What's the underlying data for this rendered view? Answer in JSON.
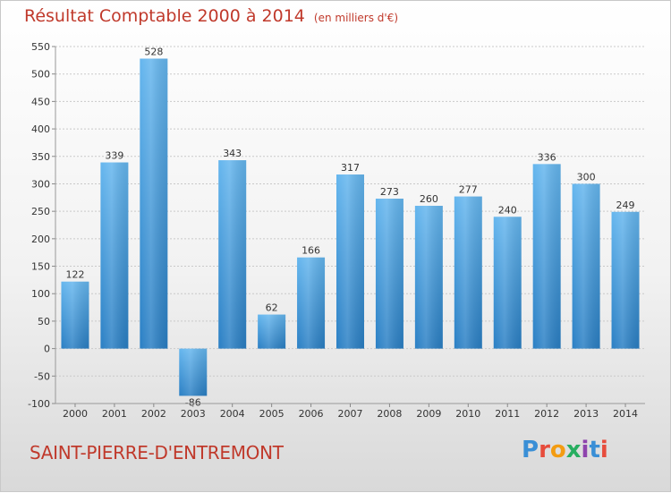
{
  "header": {
    "title": "Résultat Comptable 2000 à 2014",
    "subtitle": "(en milliers d'€)"
  },
  "footer": {
    "commune": "SAINT-PIERRE-D'ENTREMONT",
    "logo_letters": [
      "P",
      "r",
      "o",
      "x",
      "i",
      "t",
      "i"
    ]
  },
  "colors": {
    "bar": "#3d9be0",
    "bar_light": "#65b6ee",
    "bar_dark": "#2a7fc4",
    "title": "#c0392b"
  },
  "chart_data": {
    "type": "bar",
    "title": "Résultat Comptable 2000 à 2014",
    "subtitle": "(en milliers d'€)",
    "categories": [
      "2000",
      "2001",
      "2002",
      "2003",
      "2004",
      "2005",
      "2006",
      "2007",
      "2008",
      "2009",
      "2010",
      "2011",
      "2012",
      "2013",
      "2014"
    ],
    "values": [
      122,
      339,
      528,
      -86,
      343,
      62,
      166,
      317,
      273,
      260,
      277,
      240,
      336,
      300,
      249
    ],
    "ylim": [
      -100,
      550
    ],
    "yticks": [
      -100,
      -50,
      0,
      50,
      100,
      150,
      200,
      250,
      300,
      350,
      400,
      450,
      500,
      550
    ],
    "grid": true,
    "xlabel": "",
    "ylabel": ""
  }
}
